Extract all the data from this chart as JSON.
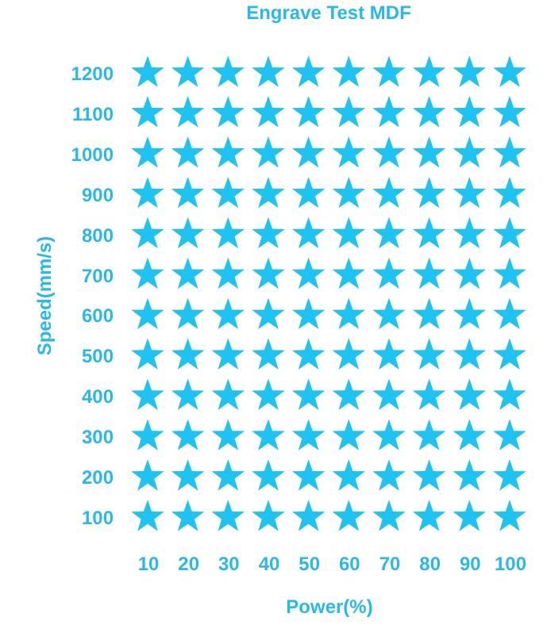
{
  "chart_data": {
    "type": "scatter",
    "title": "Engrave Test MDF",
    "xlabel": "Power(%)",
    "ylabel": "Speed(mm/s)",
    "marker": "star",
    "grid": false,
    "xlim": [
      10,
      100
    ],
    "ylim": [
      100,
      1200
    ],
    "xticks": [
      10,
      20,
      30,
      40,
      50,
      60,
      70,
      80,
      90,
      100
    ],
    "yticks": [
      100,
      200,
      300,
      400,
      500,
      600,
      700,
      800,
      900,
      1000,
      1100,
      1200
    ],
    "series": [
      {
        "color": "#1ec3f2",
        "x": [
          10,
          20,
          30,
          40,
          50,
          60,
          70,
          80,
          90,
          100,
          10,
          20,
          30,
          40,
          50,
          60,
          70,
          80,
          90,
          100,
          10,
          20,
          30,
          40,
          50,
          60,
          70,
          80,
          90,
          100,
          10,
          20,
          30,
          40,
          50,
          60,
          70,
          80,
          90,
          100,
          10,
          20,
          30,
          40,
          50,
          60,
          70,
          80,
          90,
          100,
          10,
          20,
          30,
          40,
          50,
          60,
          70,
          80,
          90,
          100,
          10,
          20,
          30,
          40,
          50,
          60,
          70,
          80,
          90,
          100,
          10,
          20,
          30,
          40,
          50,
          60,
          70,
          80,
          90,
          100,
          10,
          20,
          30,
          40,
          50,
          60,
          70,
          80,
          90,
          100,
          10,
          20,
          30,
          40,
          50,
          60,
          70,
          80,
          90,
          100,
          10,
          20,
          30,
          40,
          50,
          60,
          70,
          80,
          90,
          100,
          10,
          20,
          30,
          40,
          50,
          60,
          70,
          80,
          90,
          100
        ],
        "values": [
          1200,
          1200,
          1200,
          1200,
          1200,
          1200,
          1200,
          1200,
          1200,
          1200,
          1100,
          1100,
          1100,
          1100,
          1100,
          1100,
          1100,
          1100,
          1100,
          1100,
          1000,
          1000,
          1000,
          1000,
          1000,
          1000,
          1000,
          1000,
          1000,
          1000,
          900,
          900,
          900,
          900,
          900,
          900,
          900,
          900,
          900,
          900,
          800,
          800,
          800,
          800,
          800,
          800,
          800,
          800,
          800,
          800,
          700,
          700,
          700,
          700,
          700,
          700,
          700,
          700,
          700,
          700,
          600,
          600,
          600,
          600,
          600,
          600,
          600,
          600,
          600,
          600,
          500,
          500,
          500,
          500,
          500,
          500,
          500,
          500,
          500,
          500,
          400,
          400,
          400,
          400,
          400,
          400,
          400,
          400,
          400,
          400,
          300,
          300,
          300,
          300,
          300,
          300,
          300,
          300,
          300,
          300,
          200,
          200,
          200,
          200,
          200,
          200,
          200,
          200,
          200,
          200,
          100,
          100,
          100,
          100,
          100,
          100,
          100,
          100,
          100,
          100
        ]
      }
    ]
  }
}
